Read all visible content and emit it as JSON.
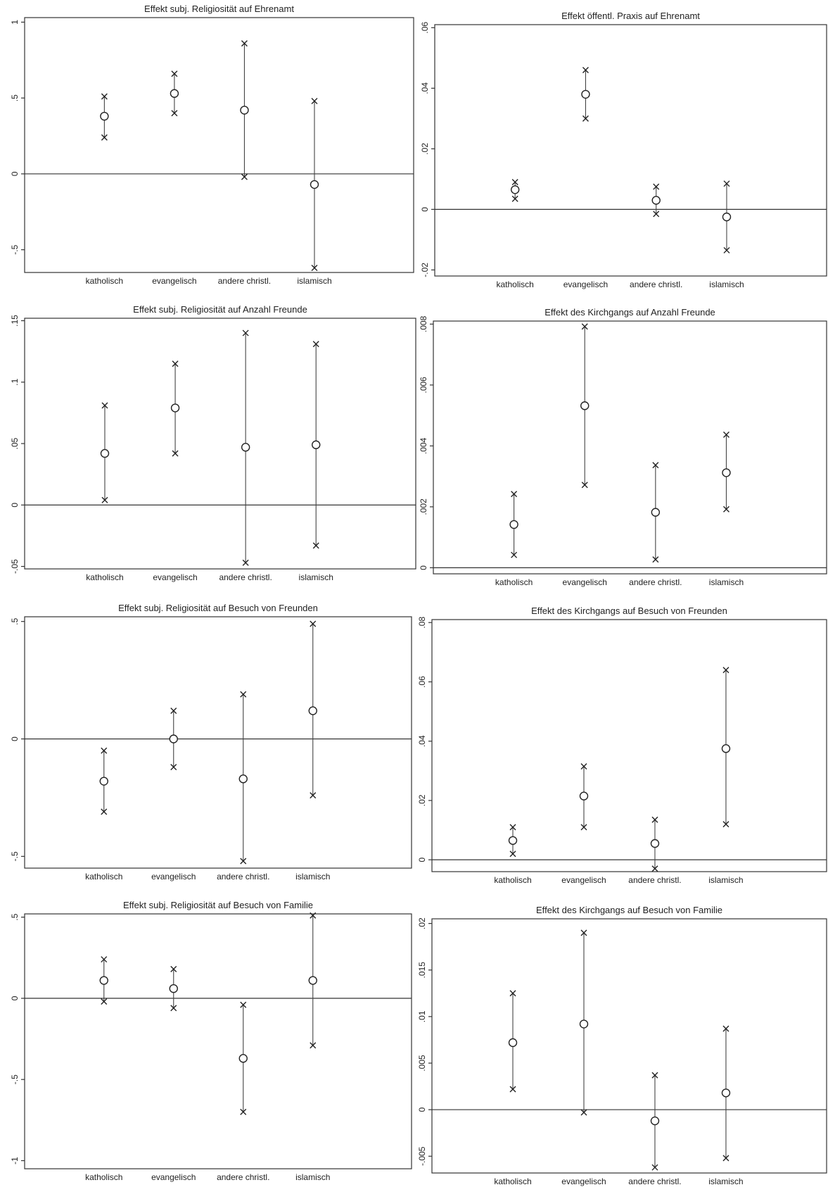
{
  "chart_data": [
    {
      "type": "scatter",
      "title": "Effekt subj. Religiosität auf Ehrenamt",
      "categories": [
        "katholisch",
        "evangelisch",
        "andere christl.",
        "islamisch"
      ],
      "yticks": [
        -0.5,
        0,
        0.5,
        1
      ],
      "ytick_labels": [
        "-.5",
        "0",
        ".5",
        "1"
      ],
      "ylim": [
        -0.65,
        1.03
      ],
      "grid": false,
      "series": [
        {
          "point": [
            0.38,
            0.53,
            0.42,
            -0.07
          ],
          "lower": [
            0.24,
            0.4,
            -0.02,
            -0.62
          ],
          "upper": [
            0.51,
            0.66,
            0.86,
            0.48
          ]
        }
      ]
    },
    {
      "type": "scatter",
      "title": "Effekt öffentl. Praxis auf Ehrenamt",
      "categories": [
        "katholisch",
        "evangelisch",
        "andere christl.",
        "islamisch"
      ],
      "yticks": [
        -0.02,
        0,
        0.02,
        0.04,
        0.06
      ],
      "ytick_labels": [
        "-.02",
        "0",
        ".02",
        ".04",
        ".06"
      ],
      "ylim": [
        -0.022,
        0.061
      ],
      "grid": false,
      "series": [
        {
          "point": [
            0.0065,
            0.038,
            0.003,
            -0.0025
          ],
          "lower": [
            0.0035,
            0.03,
            -0.0015,
            -0.0135
          ],
          "upper": [
            0.009,
            0.046,
            0.0075,
            0.0085
          ]
        }
      ]
    },
    {
      "type": "scatter",
      "title": "Effekt subj. Religiosität auf Anzahl Freunde",
      "categories": [
        "katholisch",
        "evangelisch",
        "andere christl.",
        "islamisch"
      ],
      "yticks": [
        -0.05,
        0,
        0.05,
        0.1,
        0.15
      ],
      "ytick_labels": [
        "-.05",
        "0",
        ".05",
        ".1",
        ".15"
      ],
      "ylim": [
        -0.052,
        0.152
      ],
      "grid": false,
      "series": [
        {
          "point": [
            0.042,
            0.079,
            0.047,
            0.049
          ],
          "lower": [
            0.004,
            0.042,
            -0.047,
            -0.033
          ],
          "upper": [
            0.081,
            0.115,
            0.14,
            0.131
          ]
        }
      ]
    },
    {
      "type": "scatter",
      "title": "Effekt des Kirchgangs auf Anzahl Freunde",
      "categories": [
        "katholisch",
        "evangelisch",
        "andere christl.",
        "islamisch"
      ],
      "yticks": [
        0,
        0.002,
        0.004,
        0.006,
        0.008
      ],
      "ytick_labels": [
        "0",
        ".002",
        ".004",
        ".006",
        ".008"
      ],
      "ylim": [
        -0.0002,
        0.0081
      ],
      "grid": false,
      "series": [
        {
          "point": [
            0.00142,
            0.00532,
            0.00182,
            0.00312
          ],
          "lower": [
            0.00042,
            0.00272,
            0.00027,
            0.00192
          ],
          "upper": [
            0.00242,
            0.00792,
            0.00337,
            0.00437
          ]
        }
      ]
    },
    {
      "type": "scatter",
      "title": "Effekt subj. Religiosität auf Besuch von Freunden",
      "categories": [
        "katholisch",
        "evangelisch",
        "andere christl.",
        "islamisch"
      ],
      "yticks": [
        -0.5,
        0,
        0.5
      ],
      "ytick_labels": [
        "-.5",
        "0",
        ".5"
      ],
      "ylim": [
        -0.55,
        0.52
      ],
      "grid": false,
      "series": [
        {
          "point": [
            -0.18,
            0.0,
            -0.17,
            0.12
          ],
          "lower": [
            -0.31,
            -0.12,
            -0.52,
            -0.24
          ],
          "upper": [
            -0.05,
            0.12,
            0.19,
            0.49
          ]
        }
      ]
    },
    {
      "type": "scatter",
      "title": "Effekt des Kirchgangs auf Besuch von Freunden",
      "categories": [
        "katholisch",
        "evangelisch",
        "andere christl.",
        "islamisch"
      ],
      "yticks": [
        0,
        0.02,
        0.04,
        0.06,
        0.08
      ],
      "ytick_labels": [
        "0",
        ".02",
        ".04",
        ".06",
        ".08"
      ],
      "ylim": [
        -0.004,
        0.081
      ],
      "grid": false,
      "series": [
        {
          "point": [
            0.0065,
            0.0215,
            0.0055,
            0.0375
          ],
          "lower": [
            0.002,
            0.011,
            -0.003,
            0.012
          ],
          "upper": [
            0.011,
            0.0315,
            0.0135,
            0.064
          ]
        }
      ]
    },
    {
      "type": "scatter",
      "title": "Effekt subj. Religiosität auf Besuch von Familie",
      "categories": [
        "katholisch",
        "evangelisch",
        "andere christl.",
        "islamisch"
      ],
      "yticks": [
        -1,
        -0.5,
        0,
        0.5
      ],
      "ytick_labels": [
        "-1",
        "-.5",
        "0",
        ".5"
      ],
      "ylim": [
        -1.05,
        0.52
      ],
      "grid": false,
      "series": [
        {
          "point": [
            0.11,
            0.06,
            -0.37,
            0.11
          ],
          "lower": [
            -0.02,
            -0.06,
            -0.7,
            -0.29
          ],
          "upper": [
            0.24,
            0.18,
            -0.04,
            0.51
          ]
        }
      ]
    },
    {
      "type": "scatter",
      "title": "Effekt des Kirchgangs auf Besuch von Familie",
      "categories": [
        "katholisch",
        "evangelisch",
        "andere christl.",
        "islamisch"
      ],
      "yticks": [
        -0.005,
        0,
        0.005,
        0.01,
        0.015,
        0.02
      ],
      "ytick_labels": [
        "-.005",
        "0",
        ".005",
        ".01",
        ".015",
        ".02"
      ],
      "ylim": [
        -0.0068,
        0.0205
      ],
      "grid": false,
      "series": [
        {
          "point": [
            0.0072,
            0.0092,
            -0.0012,
            0.0018
          ],
          "lower": [
            0.0022,
            -0.0003,
            -0.0062,
            -0.0052
          ],
          "upper": [
            0.0125,
            0.019,
            0.0037,
            0.0087
          ]
        }
      ]
    }
  ]
}
